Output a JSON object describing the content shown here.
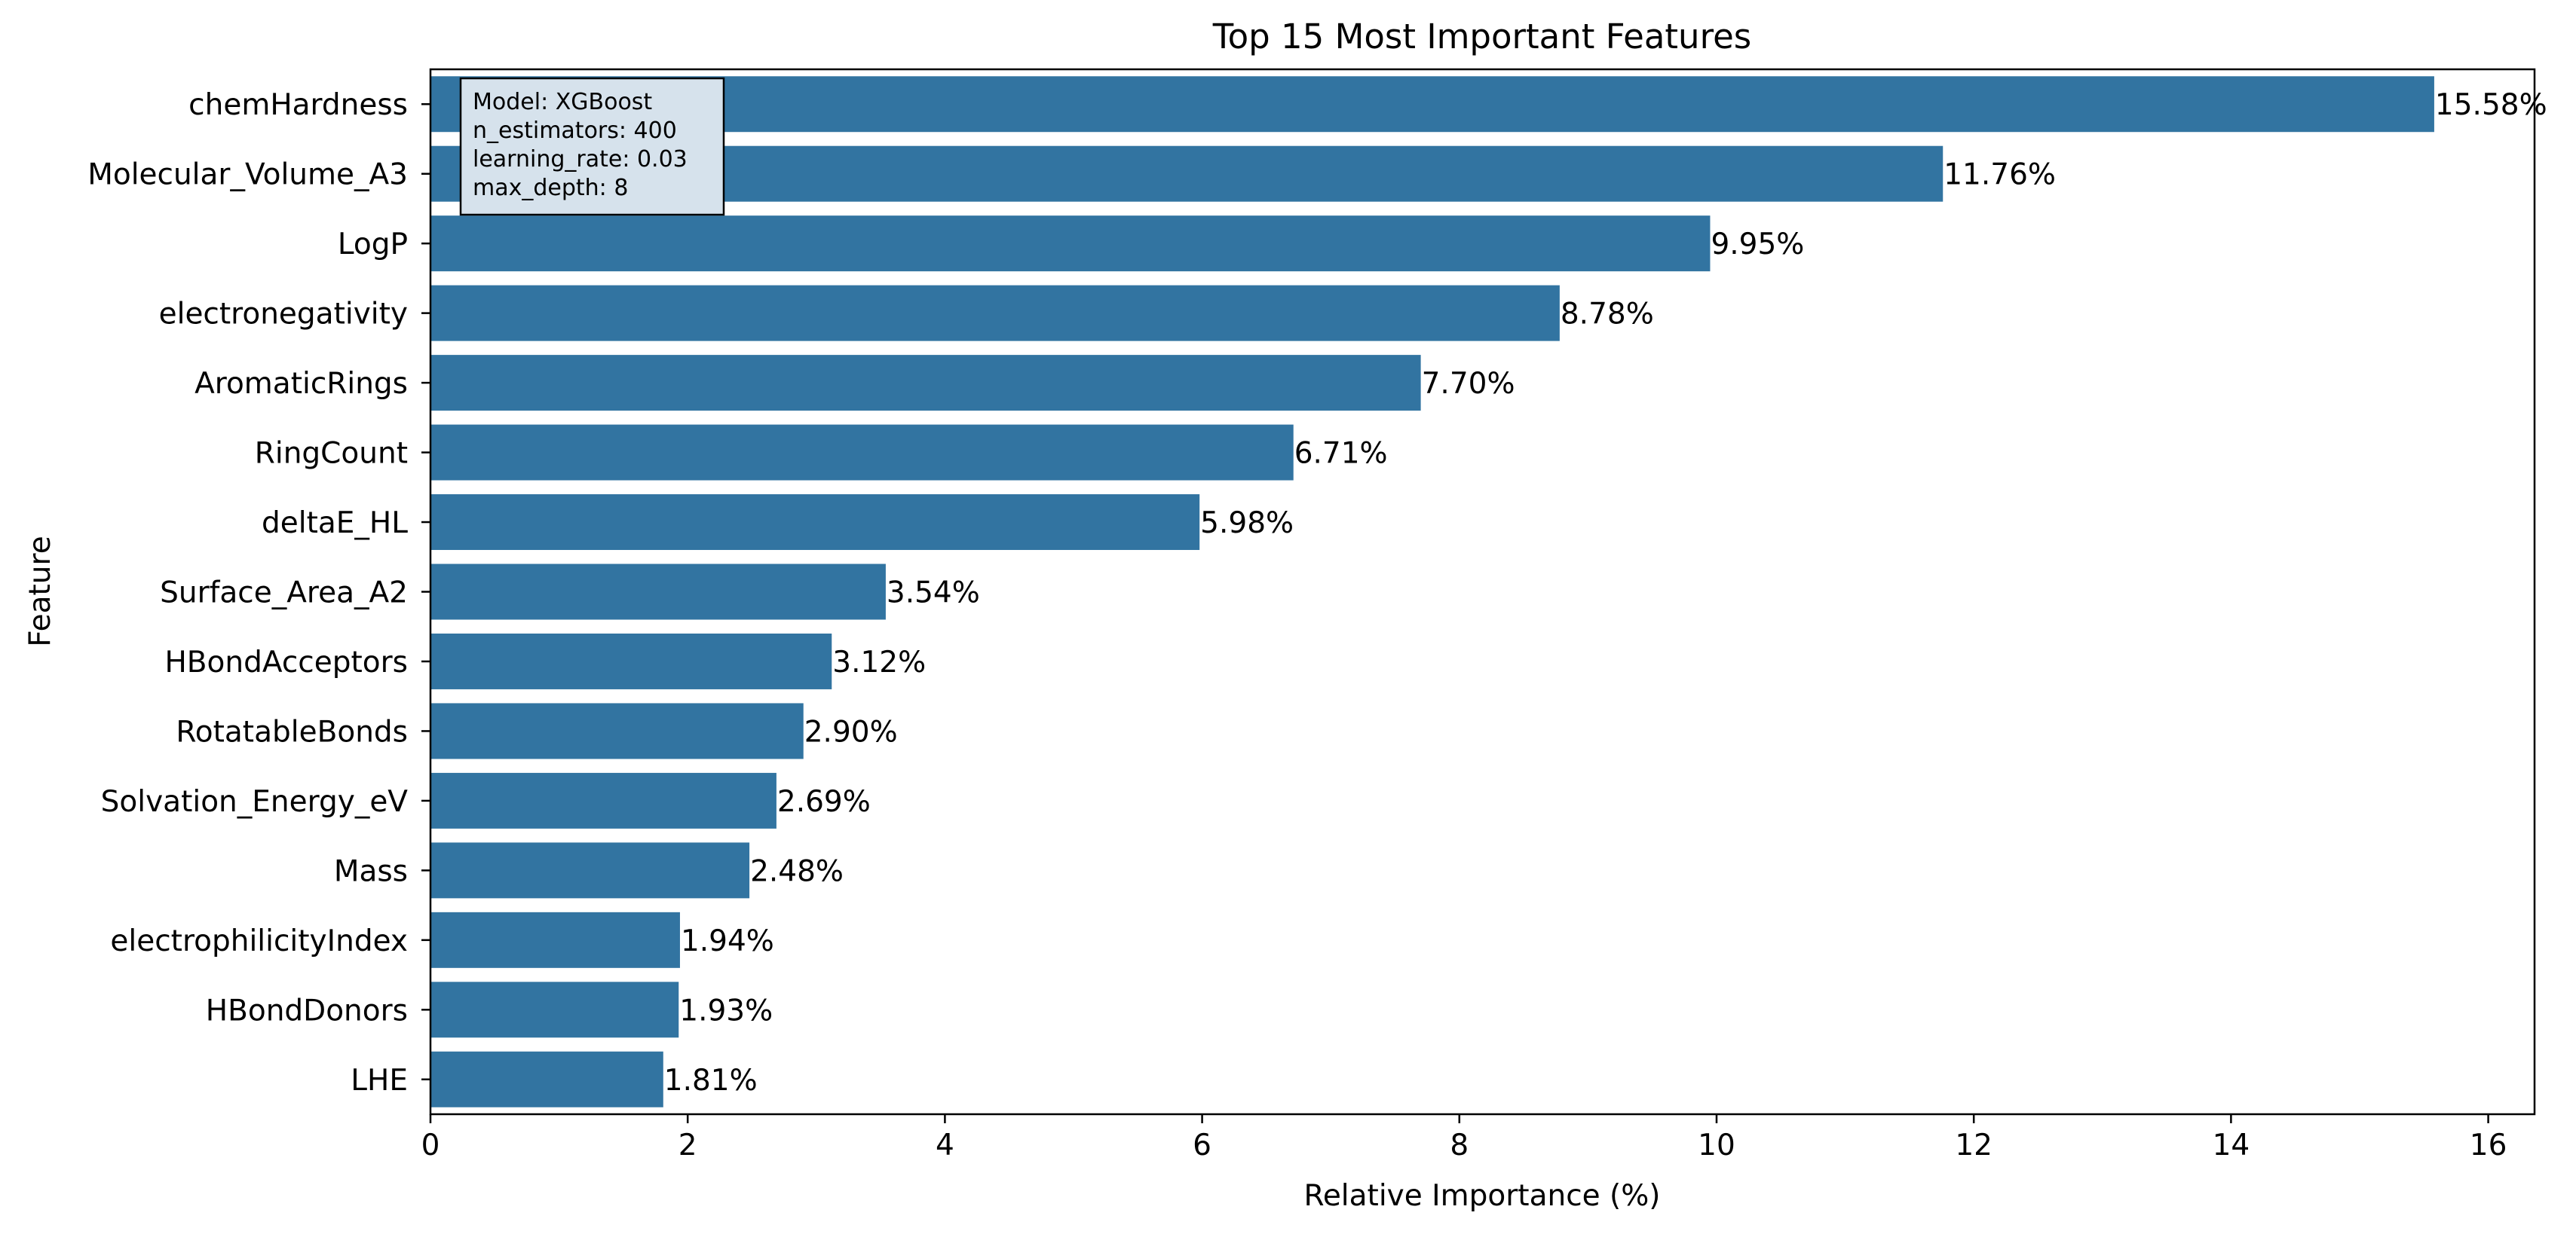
{
  "chart_data": {
    "type": "bar",
    "orientation": "horizontal",
    "title": "Top 15 Most Important Features",
    "xlabel": "Relative Importance (%)",
    "ylabel": "Feature",
    "categories": [
      "chemHardness",
      "Molecular_Volume_A3",
      "LogP",
      "electronegativity",
      "AromaticRings",
      "RingCount",
      "deltaE_HL",
      "Surface_Area_A2",
      "HBondAcceptors",
      "RotatableBonds",
      "Solvation_Energy_eV",
      "Mass",
      "electrophilicityIndex",
      "HBondDonors",
      "LHE"
    ],
    "values": [
      15.58,
      11.76,
      9.95,
      8.78,
      7.7,
      6.71,
      5.98,
      3.54,
      3.12,
      2.9,
      2.69,
      2.48,
      1.94,
      1.93,
      1.81
    ],
    "value_labels": [
      "15.58%",
      "11.76%",
      "9.95%",
      "8.78%",
      "7.70%",
      "6.71%",
      "5.98%",
      "3.54%",
      "3.12%",
      "2.90%",
      "2.69%",
      "2.48%",
      "1.94%",
      "1.93%",
      "1.81%"
    ],
    "xlim": [
      0,
      16.36
    ],
    "xticks": [
      0,
      2,
      4,
      6,
      8,
      10,
      12,
      14,
      16
    ],
    "xtick_labels": [
      "0",
      "2",
      "4",
      "6",
      "8",
      "10",
      "12",
      "14",
      "16"
    ],
    "grid": false,
    "bar_color": "#3274a1",
    "annotation": {
      "placement": "top-left",
      "lines": [
        "Model: XGBoost",
        "n_estimators: 400",
        "learning_rate: 0.03",
        "max_depth: 8"
      ],
      "background": "#d6e2ec"
    }
  }
}
